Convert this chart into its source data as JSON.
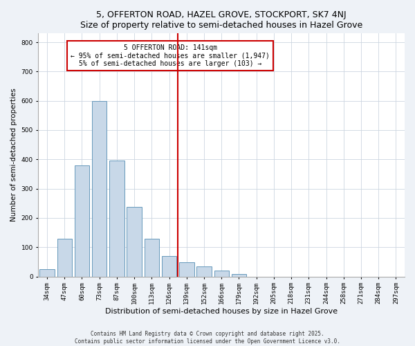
{
  "title": "5, OFFERTON ROAD, HAZEL GROVE, STOCKPORT, SK7 4NJ",
  "subtitle": "Size of property relative to semi-detached houses in Hazel Grove",
  "xlabel": "Distribution of semi-detached houses by size in Hazel Grove",
  "ylabel": "Number of semi-detached properties",
  "bar_labels": [
    "34sqm",
    "47sqm",
    "60sqm",
    "73sqm",
    "87sqm",
    "100sqm",
    "113sqm",
    "126sqm",
    "139sqm",
    "152sqm",
    "166sqm",
    "179sqm",
    "192sqm",
    "205sqm",
    "218sqm",
    "231sqm",
    "244sqm",
    "258sqm",
    "271sqm",
    "284sqm",
    "297sqm"
  ],
  "bar_heights": [
    25,
    130,
    380,
    600,
    395,
    237,
    130,
    70,
    48,
    35,
    20,
    8,
    0,
    0,
    0,
    0,
    0,
    0,
    0,
    0,
    0
  ],
  "bar_color": "#c8d8e8",
  "bar_edge_color": "#6699bb",
  "vline_color": "#cc0000",
  "ylim": [
    0,
    830
  ],
  "yticks": [
    0,
    100,
    200,
    300,
    400,
    500,
    600,
    700,
    800
  ],
  "annotation_title": "5 OFFERTON ROAD: 141sqm",
  "annotation_line1": "← 95% of semi-detached houses are smaller (1,947)",
  "annotation_line2": "5% of semi-detached houses are larger (103) →",
  "annotation_box_color": "#cc0000",
  "footer_line1": "Contains HM Land Registry data © Crown copyright and database right 2025.",
  "footer_line2": "Contains public sector information licensed under the Open Government Licence v3.0.",
  "bg_color": "#eef2f7",
  "plot_bg_color": "#ffffff",
  "title_fontsize": 9,
  "subtitle_fontsize": 8,
  "tick_fontsize": 6.5,
  "ylabel_fontsize": 7.5,
  "xlabel_fontsize": 8,
  "annotation_fontsize": 7,
  "footer_fontsize": 5.5
}
